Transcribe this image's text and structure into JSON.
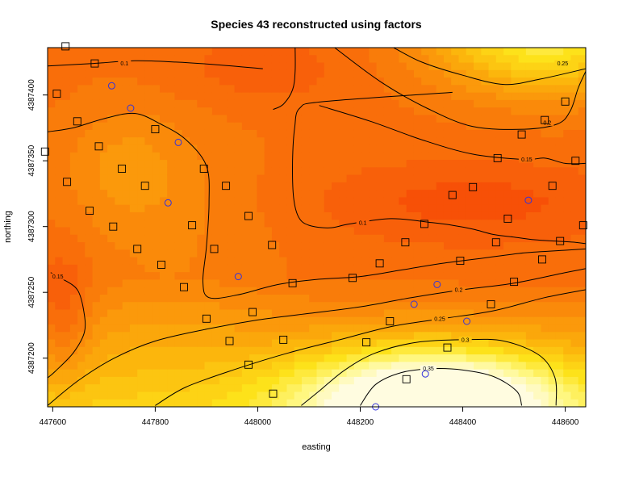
{
  "chart_data": {
    "type": "heatmap",
    "title": "Species 43 reconstructed using factors",
    "xlabel": "easting",
    "ylabel": "northing",
    "xlim": [
      447590,
      448640
    ],
    "ylim": [
      4387163,
      4387436
    ],
    "xticks": [
      447600,
      447800,
      448000,
      448200,
      448400,
      448600
    ],
    "yticks": [
      4387200,
      4387250,
      4387300,
      4387350,
      4387400
    ],
    "colormap": [
      "#f43000",
      "#f8600a",
      "#fa8a0a",
      "#fcb60c",
      "#fde21a",
      "#fff780",
      "#fffce0"
    ],
    "color_range": [
      0.0,
      0.45
    ],
    "contour_levels": [
      0.1,
      0.15,
      0.2,
      0.25,
      0.3,
      0.35
    ],
    "contours": [
      {
        "level": "0.25",
        "label": "0.25",
        "points": [
          [
            448265,
            4387436
          ],
          [
            448320,
            4387425
          ],
          [
            448400,
            4387415
          ],
          [
            448480,
            4387408
          ],
          [
            448550,
            4387412
          ],
          [
            448640,
            4387420
          ]
        ],
        "label_at": [
          448595,
          4387424
        ]
      },
      {
        "level": "0.2",
        "label": "0.2",
        "points": [
          [
            448150,
            4387436
          ],
          [
            448240,
            4387410
          ],
          [
            448330,
            4387390
          ],
          [
            448420,
            4387376
          ],
          [
            448520,
            4387374
          ],
          [
            448585,
            4387378
          ],
          [
            448610,
            4387388
          ],
          [
            448625,
            4387405
          ],
          [
            448640,
            4387418
          ]
        ],
        "label_at": [
          448565,
          4387379
        ]
      },
      {
        "level": "0.15",
        "label": "0.15",
        "points": [
          [
            448120,
            4387392
          ],
          [
            448220,
            4387380
          ],
          [
            448320,
            4387366
          ],
          [
            448420,
            4387355
          ],
          [
            448520,
            4387351
          ],
          [
            448560,
            4387352
          ],
          [
            448600,
            4387348
          ],
          [
            448640,
            4387348
          ]
        ],
        "label_at": [
          448525,
          4387351
        ]
      },
      {
        "level": "0.1 (top)",
        "label": "0.1",
        "points": [
          [
            447590,
            4387422
          ],
          [
            447680,
            4387424
          ],
          [
            447760,
            4387426
          ],
          [
            447840,
            4387425
          ],
          [
            447920,
            4387423
          ],
          [
            448010,
            4387420
          ]
        ],
        "label_at": [
          447740,
          4387424
        ]
      },
      {
        "level": "0.1 (vertical)",
        "label": "",
        "points": [
          [
            448073,
            4387436
          ],
          [
            448073,
            4387418
          ],
          [
            448068,
            4387404
          ],
          [
            448050,
            4387393
          ],
          [
            448030,
            4387389
          ]
        ]
      },
      {
        "level": "0.1 (basin)",
        "label": "0.1",
        "points": [
          [
            448380,
            4387402
          ],
          [
            448130,
            4387395
          ],
          [
            448082,
            4387390
          ],
          [
            448072,
            4387375
          ],
          [
            448068,
            4387350
          ],
          [
            448070,
            4387322
          ],
          [
            448080,
            4387307
          ],
          [
            448100,
            4387301
          ],
          [
            448140,
            4387299
          ],
          [
            448180,
            4387302
          ],
          [
            448260,
            4387306
          ],
          [
            448340,
            4387303
          ],
          [
            448380,
            4387301
          ],
          [
            448420,
            4387298
          ],
          [
            448460,
            4387294
          ],
          [
            448500,
            4387292
          ],
          [
            448540,
            4387290
          ],
          [
            448580,
            4387289
          ],
          [
            448620,
            4387288
          ],
          [
            448640,
            4387287
          ]
        ],
        "label_at": [
          448205,
          4387303
        ]
      },
      {
        "level": "0.15 (loop)",
        "label": "",
        "points": [
          [
            447590,
            4387372
          ],
          [
            447640,
            4387375
          ],
          [
            447700,
            4387382
          ],
          [
            447760,
            4387386
          ],
          [
            447810,
            4387378
          ],
          [
            447860,
            4387366
          ],
          [
            447900,
            4387346
          ],
          [
            447905,
            4387318
          ],
          [
            447900,
            4387285
          ],
          [
            447893,
            4387258
          ],
          [
            447905,
            4387246
          ],
          [
            447960,
            4387248
          ],
          [
            448040,
            4387256
          ],
          [
            448120,
            4387260
          ],
          [
            448200,
            4387262
          ],
          [
            448280,
            4387267
          ],
          [
            448360,
            4387272
          ],
          [
            448440,
            4387276
          ],
          [
            448520,
            4387280
          ],
          [
            448600,
            4387282
          ],
          [
            448640,
            4387283
          ]
        ],
        "label_at": [
          448345,
          4387266
        ]
      },
      {
        "level": "0.15 (left)",
        "label": "0.15",
        "points": [
          [
            447596,
            4387265
          ],
          [
            447620,
            4387260
          ],
          [
            447648,
            4387252
          ],
          [
            447660,
            4387237
          ],
          [
            447662,
            4387220
          ],
          [
            447640,
            4387204
          ],
          [
            447605,
            4387190
          ],
          [
            447590,
            4387185
          ]
        ],
        "label_at": [
          447610,
          4387262
        ]
      },
      {
        "level": "0.2",
        "label": "0.2",
        "points": [
          [
            447590,
            4387164
          ],
          [
            447650,
            4387183
          ],
          [
            447720,
            4387200
          ],
          [
            447800,
            4387213
          ],
          [
            447900,
            4387222
          ],
          [
            448000,
            4387229
          ],
          [
            448100,
            4387234
          ],
          [
            448200,
            4387239
          ],
          [
            448300,
            4387246
          ],
          [
            448400,
            4387252
          ],
          [
            448500,
            4387257
          ],
          [
            448600,
            4387265
          ],
          [
            448640,
            4387268
          ]
        ],
        "label_at": [
          448392,
          4387252
        ]
      },
      {
        "level": "0.25",
        "label": "0.25",
        "points": [
          [
            447800,
            4387164
          ],
          [
            447860,
            4387178
          ],
          [
            447960,
            4387192
          ],
          [
            448060,
            4387204
          ],
          [
            448160,
            4387214
          ],
          [
            448260,
            4387224
          ],
          [
            448360,
            4387230
          ],
          [
            448460,
            4387236
          ],
          [
            448560,
            4387246
          ],
          [
            448640,
            4387252
          ]
        ],
        "label_at": [
          448355,
          4387230
        ]
      },
      {
        "level": "0.3",
        "label": "0.3",
        "points": [
          [
            448085,
            4387164
          ],
          [
            448120,
            4387175
          ],
          [
            448170,
            4387191
          ],
          [
            448230,
            4387204
          ],
          [
            448310,
            4387212
          ],
          [
            448400,
            4387214
          ],
          [
            448480,
            4387213
          ],
          [
            448550,
            4387202
          ],
          [
            448580,
            4387185
          ],
          [
            448582,
            4387164
          ]
        ],
        "label_at": [
          448405,
          4387214
        ]
      },
      {
        "level": "0.35",
        "label": "0.35",
        "points": [
          [
            448200,
            4387164
          ],
          [
            448230,
            4387180
          ],
          [
            448280,
            4387189
          ],
          [
            448340,
            4387192
          ],
          [
            448400,
            4387191
          ],
          [
            448460,
            4387186
          ],
          [
            448505,
            4387175
          ],
          [
            448515,
            4387164
          ]
        ],
        "label_at": [
          448333,
          4387192
        ]
      }
    ],
    "square_points": [
      [
        447625,
        4387437
      ],
      [
        447682,
        4387424
      ],
      [
        447608,
        4387401
      ],
      [
        447648,
        4387380
      ],
      [
        447585,
        4387357
      ],
      [
        447690,
        4387361
      ],
      [
        447628,
        4387334
      ],
      [
        447672,
        4387312
      ],
      [
        447718,
        4387300
      ],
      [
        447735,
        4387344
      ],
      [
        447780,
        4387331
      ],
      [
        447800,
        4387374
      ],
      [
        447895,
        4387344
      ],
      [
        447938,
        4387331
      ],
      [
        447765,
        4387283
      ],
      [
        447812,
        4387271
      ],
      [
        447872,
        4387301
      ],
      [
        447915,
        4387283
      ],
      [
        447982,
        4387308
      ],
      [
        447856,
        4387254
      ],
      [
        447900,
        4387230
      ],
      [
        447945,
        4387213
      ],
      [
        448028,
        4387286
      ],
      [
        448068,
        4387257
      ],
      [
        447990,
        4387235
      ],
      [
        448050,
        4387214
      ],
      [
        447982,
        4387195
      ],
      [
        448030,
        4387173
      ],
      [
        448185,
        4387261
      ],
      [
        448238,
        4387272
      ],
      [
        448288,
        4387288
      ],
      [
        448325,
        4387302
      ],
      [
        448380,
        4387324
      ],
      [
        448420,
        4387330
      ],
      [
        448468,
        4387352
      ],
      [
        448515,
        4387370
      ],
      [
        448560,
        4387381
      ],
      [
        448600,
        4387395
      ],
      [
        448620,
        4387350
      ],
      [
        448575,
        4387331
      ],
      [
        448488,
        4387306
      ],
      [
        448465,
        4387288
      ],
      [
        448395,
        4387274
      ],
      [
        448500,
        4387258
      ],
      [
        448555,
        4387275
      ],
      [
        448590,
        4387289
      ],
      [
        448635,
        4387301
      ],
      [
        448455,
        4387241
      ],
      [
        448370,
        4387208
      ],
      [
        448258,
        4387228
      ],
      [
        448212,
        4387212
      ],
      [
        448290,
        4387184
      ]
    ],
    "circle_points": [
      [
        447715,
        4387407
      ],
      [
        447752,
        4387390
      ],
      [
        447845,
        4387364
      ],
      [
        447825,
        4387318
      ],
      [
        447962,
        4387262
      ],
      [
        448350,
        4387256
      ],
      [
        448305,
        4387241
      ],
      [
        448408,
        4387228
      ],
      [
        448327,
        4387188
      ],
      [
        448528,
        4387320
      ],
      [
        448230,
        4387163
      ]
    ]
  }
}
